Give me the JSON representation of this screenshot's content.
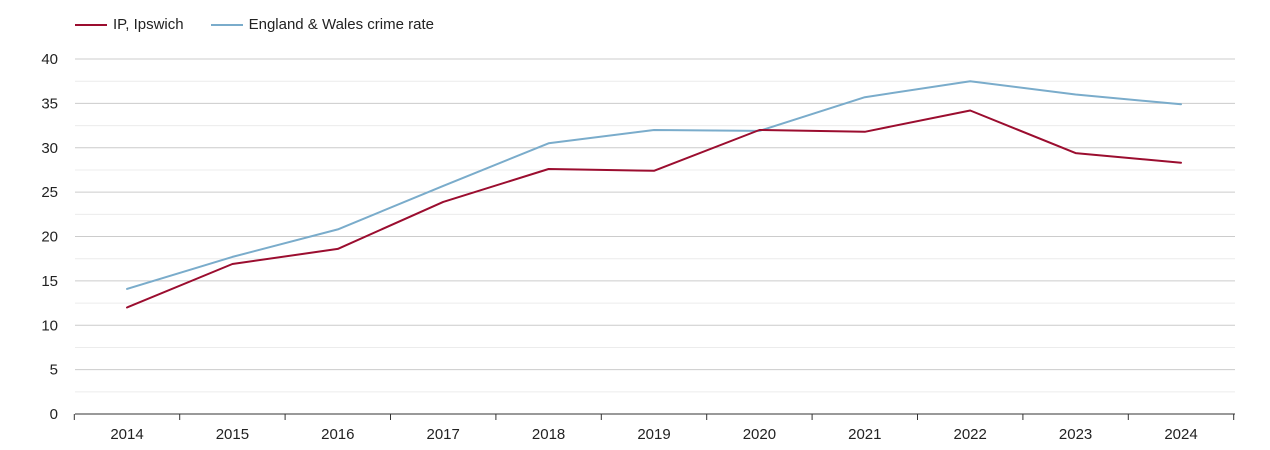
{
  "chart_data": {
    "type": "line",
    "title": "",
    "xlabel": "",
    "ylabel": "",
    "ylim": [
      0,
      40
    ],
    "yticks": [
      0,
      5,
      10,
      15,
      20,
      25,
      30,
      35,
      40
    ],
    "categories": [
      "2014",
      "2015",
      "2016",
      "2017",
      "2018",
      "2019",
      "2020",
      "2021",
      "2022",
      "2023",
      "2024"
    ],
    "legend_position": "top-left",
    "grid": true,
    "series": [
      {
        "name": "IP, Ipswich",
        "color": "#9b0d2f",
        "values": [
          12.0,
          16.9,
          18.6,
          23.9,
          27.6,
          27.4,
          32.0,
          31.8,
          34.2,
          29.4,
          28.3
        ]
      },
      {
        "name": "England & Wales crime rate",
        "color": "#7aaccb",
        "values": [
          14.1,
          17.7,
          20.8,
          25.7,
          30.5,
          32.0,
          31.9,
          35.7,
          37.5,
          36.0,
          34.9
        ]
      }
    ]
  }
}
